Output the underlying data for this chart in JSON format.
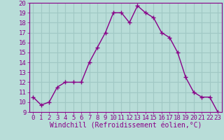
{
  "x": [
    0,
    1,
    2,
    3,
    4,
    5,
    6,
    7,
    8,
    9,
    10,
    11,
    12,
    13,
    14,
    15,
    16,
    17,
    18,
    19,
    20,
    21,
    22,
    23
  ],
  "y": [
    10.5,
    9.7,
    10.0,
    11.5,
    12.0,
    12.0,
    12.0,
    14.0,
    15.5,
    17.0,
    19.0,
    19.0,
    18.0,
    19.7,
    19.0,
    18.5,
    17.0,
    16.5,
    15.0,
    12.5,
    11.0,
    10.5,
    10.5,
    9.0
  ],
  "line_color": "#880088",
  "marker": "+",
  "marker_size": 4,
  "marker_lw": 1.0,
  "bg_color": "#b8ddd8",
  "grid_color": "#a0c8c4",
  "xlabel": "Windchill (Refroidissement éolien,°C)",
  "ylim": [
    9,
    20
  ],
  "xlim_min": -0.5,
  "xlim_max": 23.5,
  "yticks": [
    9,
    10,
    11,
    12,
    13,
    14,
    15,
    16,
    17,
    18,
    19,
    20
  ],
  "xticks": [
    0,
    1,
    2,
    3,
    4,
    5,
    6,
    7,
    8,
    9,
    10,
    11,
    12,
    13,
    14,
    15,
    16,
    17,
    18,
    19,
    20,
    21,
    22,
    23
  ],
  "tick_color": "#880088",
  "tick_label_color": "#880088",
  "xlabel_color": "#880088",
  "xlabel_fontsize": 7,
  "tick_fontsize": 6.5,
  "linewidth": 1.0
}
